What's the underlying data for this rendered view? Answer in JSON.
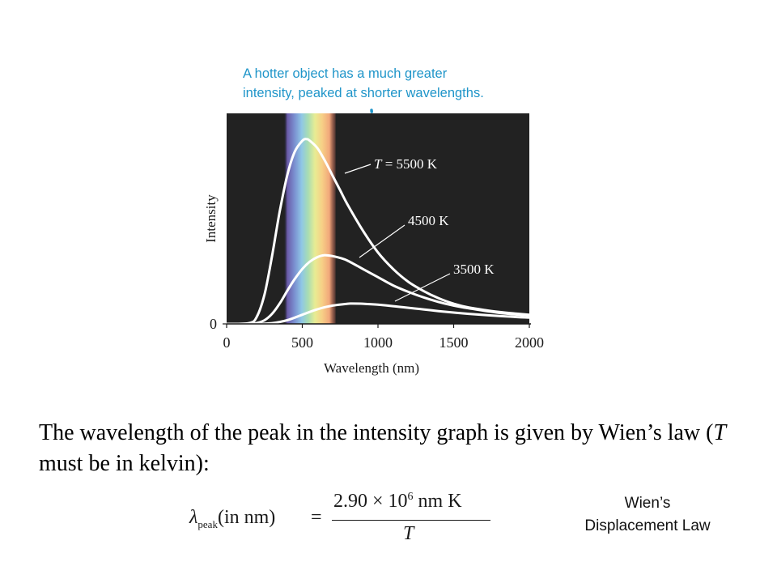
{
  "chart_data": {
    "type": "line",
    "xlabel": "Wavelength (nm)",
    "ylabel": "Intensity",
    "xlim": [
      0,
      2000
    ],
    "ylim": [
      0,
      1.15
    ],
    "x_ticks": [
      "0",
      "500",
      "1000",
      "1500",
      "2000"
    ],
    "y_ticks": [
      "0"
    ],
    "background": "#222222",
    "annotation": [
      "A hotter object has a much greater",
      "intensity, peaked at shorter wavelengths."
    ],
    "series": [
      {
        "name": "T = 5500 K",
        "label_prefix": "T",
        "label_rest": " = 5500 K",
        "color": "#ffffff",
        "x": [
          0,
          150,
          200,
          250,
          300,
          350,
          400,
          450,
          500,
          527,
          550,
          600,
          650,
          700,
          750,
          800,
          900,
          1000,
          1100,
          1200,
          1300,
          1400,
          1500,
          1600,
          1800,
          2000
        ],
        "y": [
          0,
          0.005,
          0.04,
          0.16,
          0.37,
          0.61,
          0.81,
          0.94,
          1.0,
          1.01,
          1.0,
          0.96,
          0.89,
          0.81,
          0.73,
          0.65,
          0.51,
          0.39,
          0.3,
          0.23,
          0.18,
          0.14,
          0.11,
          0.09,
          0.065,
          0.05
        ]
      },
      {
        "name": "4500 K",
        "label_prefix": "",
        "label_rest": "4500 K",
        "color": "#ffffff",
        "x": [
          0,
          150,
          200,
          250,
          300,
          350,
          400,
          450,
          500,
          550,
          600,
          644,
          700,
          750,
          800,
          900,
          1000,
          1100,
          1200,
          1300,
          1400,
          1500,
          1600,
          1800,
          2000
        ],
        "y": [
          0,
          0.0,
          0.005,
          0.02,
          0.055,
          0.11,
          0.18,
          0.245,
          0.3,
          0.34,
          0.365,
          0.375,
          0.37,
          0.36,
          0.345,
          0.3,
          0.255,
          0.21,
          0.175,
          0.145,
          0.12,
          0.1,
          0.085,
          0.06,
          0.045
        ]
      },
      {
        "name": "3500 K",
        "label_prefix": "",
        "label_rest": "3500 K",
        "color": "#ffffff",
        "x": [
          0,
          200,
          300,
          400,
          500,
          600,
          700,
          800,
          828,
          900,
          1000,
          1100,
          1200,
          1300,
          1400,
          1500,
          1600,
          1800,
          2000
        ],
        "y": [
          0,
          0.0,
          0.004,
          0.02,
          0.05,
          0.08,
          0.1,
          0.11,
          0.111,
          0.11,
          0.105,
          0.097,
          0.088,
          0.079,
          0.07,
          0.062,
          0.055,
          0.043,
          0.034
        ]
      }
    ]
  },
  "text": {
    "body_before_italic": "The wavelength of the peak in the intensity graph is given by Wien’s law (",
    "body_italic": "T",
    "body_after_italic": " must be in kelvin):"
  },
  "formula": {
    "lambda": "λ",
    "subscript": "peak",
    "lhs_rest": "(in nm)",
    "equals": "=",
    "numerator_lead": "2.90 × 10",
    "numerator_exp": "6",
    "numerator_unit": " nm K",
    "denominator": "T"
  },
  "caption": {
    "line1": "Wien’s",
    "line2": "Displacement Law"
  }
}
